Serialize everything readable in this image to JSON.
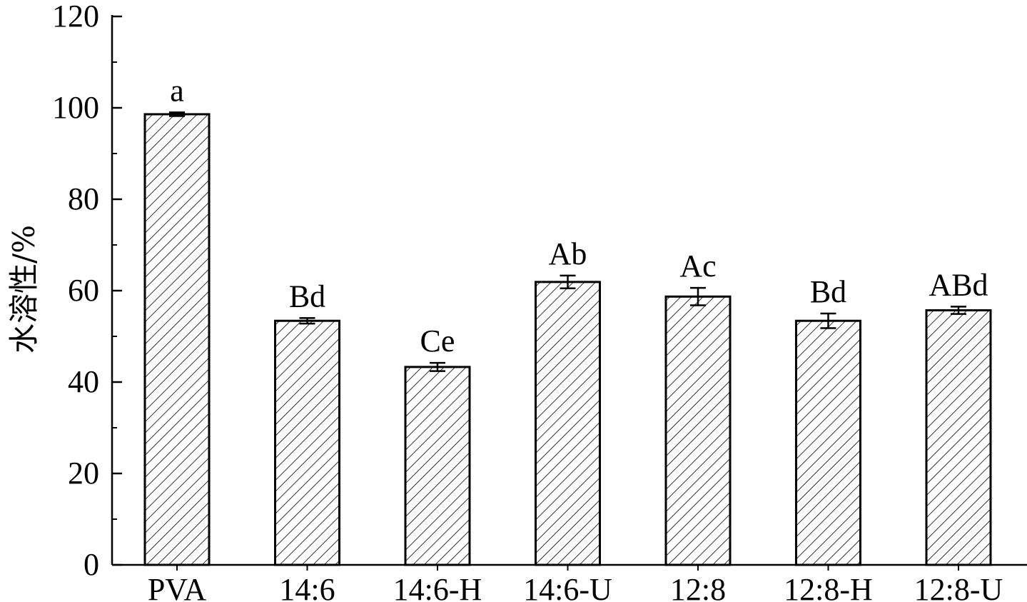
{
  "chart_data": {
    "type": "bar",
    "title": "",
    "xlabel": "",
    "ylabel": "水溶性/%",
    "ylim": [
      0,
      120
    ],
    "yticks": [
      0,
      20,
      40,
      60,
      80,
      100,
      120
    ],
    "categories": [
      "PVA",
      "14:6",
      "14:6-H",
      "14:6-U",
      "12:8",
      "12:8-H",
      "12:8-U"
    ],
    "values": [
      98.6,
      53.4,
      43.3,
      61.9,
      58.7,
      53.4,
      55.7
    ],
    "errors": [
      0.4,
      0.6,
      0.9,
      1.4,
      1.9,
      1.6,
      0.8
    ],
    "significance": [
      "a",
      "Bd",
      "Ce",
      "Ab",
      "Ac",
      "Bd",
      "ABd"
    ],
    "bar_fill": "hatched",
    "bar_color": "#000000",
    "grid": false,
    "legend": "none"
  }
}
